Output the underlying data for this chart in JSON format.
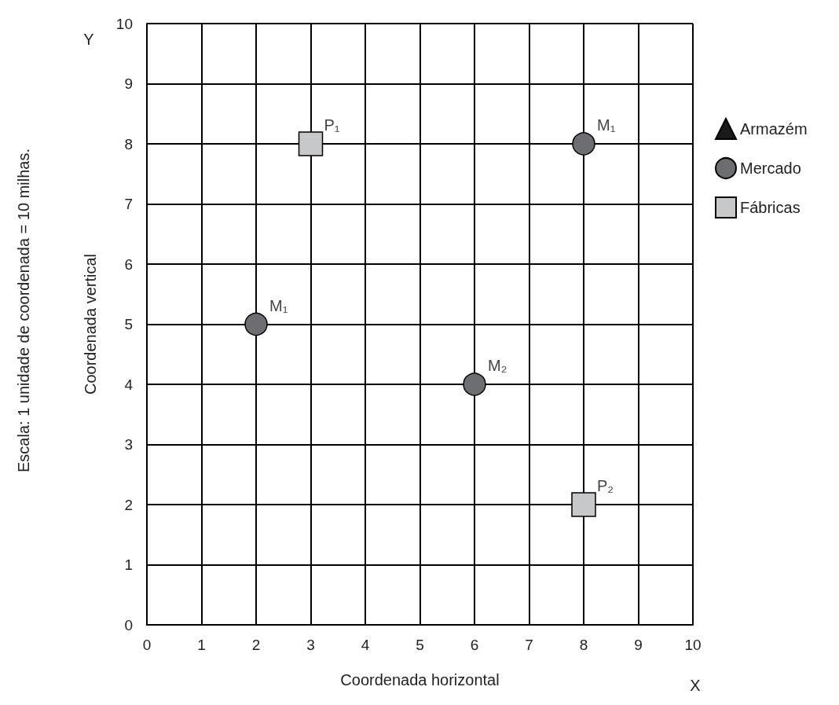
{
  "chart_data": {
    "type": "scatter",
    "xlabel": "Coordenada horizontal",
    "ylabel": "Coordenada vertical",
    "xlim": [
      0,
      10
    ],
    "ylim": [
      0,
      10
    ],
    "xticks": [
      0,
      1,
      2,
      3,
      4,
      5,
      6,
      7,
      8,
      9,
      10
    ],
    "yticks": [
      0,
      1,
      2,
      3,
      4,
      5,
      6,
      7,
      8,
      9,
      10
    ],
    "grid": true,
    "legend": "right",
    "series": [
      {
        "name": "Armazém",
        "color": "#1a1a1a",
        "marker": "triangle"
      },
      {
        "name": "Mercado",
        "color": "#6d6e71",
        "marker": "circle",
        "x": [
          8,
          2,
          6
        ],
        "values": [
          8,
          5,
          4
        ]
      },
      {
        "name": "Fábricas",
        "color": "#c7c8ca",
        "marker": "square",
        "x": [
          3,
          8
        ],
        "values": [
          8,
          2
        ]
      }
    ],
    "annotations": [
      "Y",
      "X",
      "Escala: 1 unidade de coordenada = 10 milhas.",
      {
        "text": "P₁",
        "x": 3,
        "y": 8
      },
      {
        "text": "M₁",
        "x": 8,
        "y": 8
      },
      {
        "text": "M₁",
        "x": 2,
        "y": 5
      },
      {
        "text": "M₂",
        "x": 6,
        "y": 4
      },
      {
        "text": "P₂",
        "x": 8,
        "y": 2
      }
    ]
  }
}
